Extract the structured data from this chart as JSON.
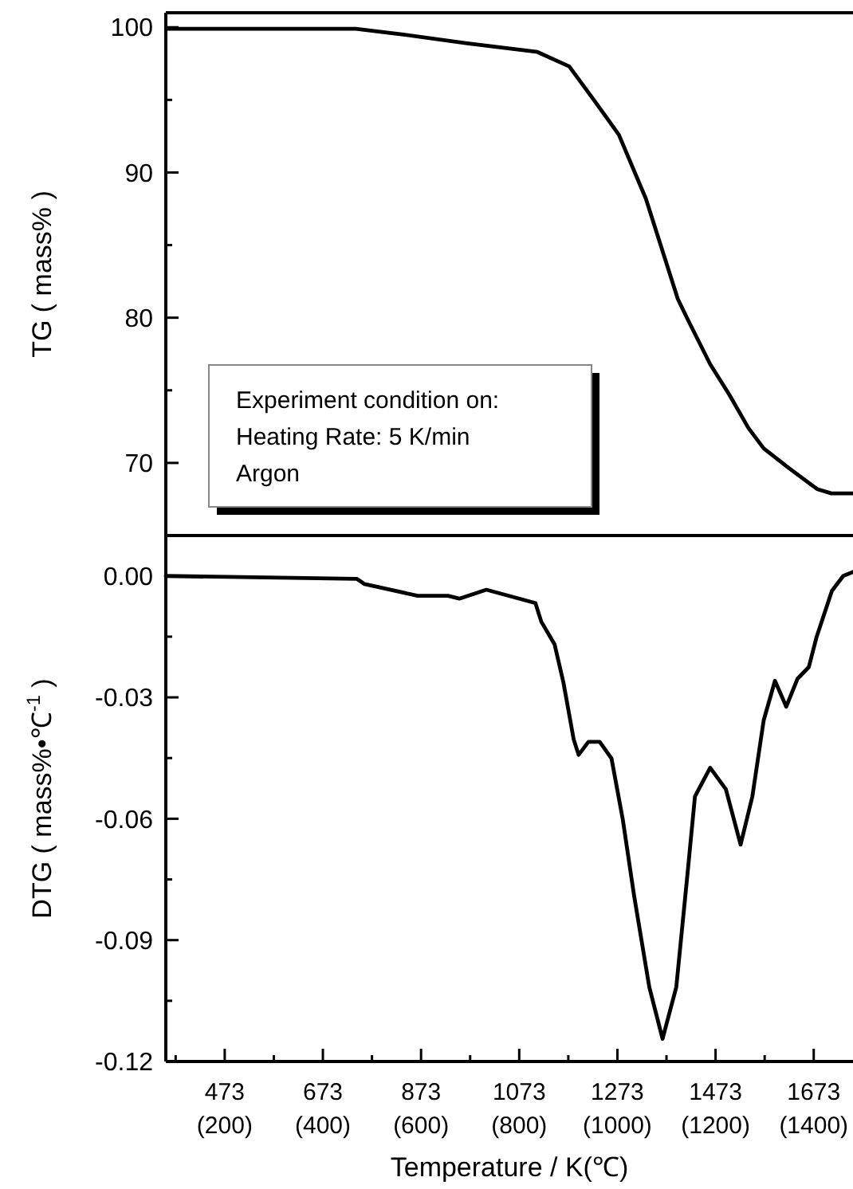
{
  "chart_data": [
    {
      "type": "line",
      "ylabel": "TG ( mass% )",
      "xlim": [
        353,
        1753
      ],
      "ylim": [
        65,
        101
      ],
      "yticks": [
        70,
        {
          "value": 75,
          "label": null
        },
        80,
        {
          "value": 85,
          "label": null
        },
        90,
        {
          "value": 95,
          "label": null
        },
        100
      ],
      "tick_labels": "y",
      "marker": "none",
      "line_style": "solid",
      "grid": false,
      "annotations": [
        "Experiment condition on:\nHeating Rate: 5 K/min\nArgon"
      ],
      "series": [
        {
          "color": "#000000",
          "x": [
            356,
            740,
            837,
            967,
            1110,
            1175,
            1227,
            1276,
            1331,
            1396,
            1416,
            1462,
            1501,
            1540,
            1571,
            1624,
            1680,
            1709,
            1753
          ],
          "values": [
            99.9,
            99.9,
            99.5,
            98.9,
            98.3,
            97.3,
            94.9,
            92.6,
            88.2,
            81.3,
            79.9,
            76.8,
            74.7,
            72.4,
            71.0,
            69.6,
            68.2,
            67.9,
            67.9
          ]
        }
      ]
    },
    {
      "type": "line",
      "ylabel": "DTG ( mass%•℃$^{-1}$ )",
      "xlabel": "Temperature / K(℃)",
      "xlim": [
        353,
        1753
      ],
      "ylim": [
        -0.12,
        0.01
      ],
      "xticks": [
        {
          "value": 373,
          "label": null
        },
        473,
        {
          "value": 573,
          "label": null
        },
        673,
        {
          "value": 773,
          "label": null
        },
        873,
        {
          "value": 973,
          "label": null
        },
        1073,
        {
          "value": 1173,
          "label": null
        },
        1273,
        {
          "value": 1373,
          "label": null
        },
        1473,
        {
          "value": 1573,
          "label": null
        },
        1673
      ],
      "x2lim": [
        80,
        1480
      ],
      "x2ticks": [
        {
          "value": 200,
          "label": "(200)"
        },
        {
          "value": 400,
          "label": "(400)"
        },
        {
          "value": 600,
          "label": "(600)"
        },
        {
          "value": 800,
          "label": "(800)"
        },
        {
          "value": 1000,
          "label": "(1000)"
        },
        {
          "value": 1200,
          "label": "(1200)"
        },
        {
          "value": 1400,
          "label": "(1400)"
        }
      ],
      "yticks": [
        {
          "value": -0.12,
          "label": "-0.12"
        },
        {
          "value": -0.105,
          "label": null
        },
        {
          "value": -0.09,
          "label": "-0.09"
        },
        {
          "value": -0.075,
          "label": null
        },
        {
          "value": -0.06,
          "label": "-0.06"
        },
        {
          "value": -0.045,
          "label": null
        },
        {
          "value": -0.03,
          "label": "-0.03"
        },
        {
          "value": -0.015,
          "label": null
        },
        {
          "value": 0,
          "label": "0.00"
        }
      ],
      "marker": "none",
      "line_style": "solid",
      "grid": false,
      "series": [
        {
          "color": "#000000",
          "x": [
            353,
            742,
            758,
            866,
            928,
            951,
            1006,
            1106,
            1118,
            1145,
            1163,
            1184,
            1194,
            1214,
            1237,
            1261,
            1284,
            1307,
            1338,
            1365,
            1393,
            1416,
            1431,
            1462,
            1494,
            1524,
            1548,
            1571,
            1594,
            1617,
            1640,
            1663,
            1679,
            1710,
            1733,
            1753
          ],
          "values": [
            0,
            -0.0007,
            -0.002,
            -0.0049,
            -0.0049,
            -0.0056,
            -0.0034,
            -0.0067,
            -0.0113,
            -0.0169,
            -0.0263,
            -0.0404,
            -0.0442,
            -0.041,
            -0.041,
            -0.0451,
            -0.0602,
            -0.079,
            -0.1016,
            -0.1144,
            -0.1016,
            -0.0734,
            -0.0545,
            -0.0474,
            -0.0527,
            -0.0664,
            -0.0545,
            -0.0357,
            -0.0259,
            -0.0323,
            -0.0254,
            -0.0225,
            -0.015,
            -0.0037,
            0.0,
            0.001
          ]
        }
      ]
    }
  ]
}
